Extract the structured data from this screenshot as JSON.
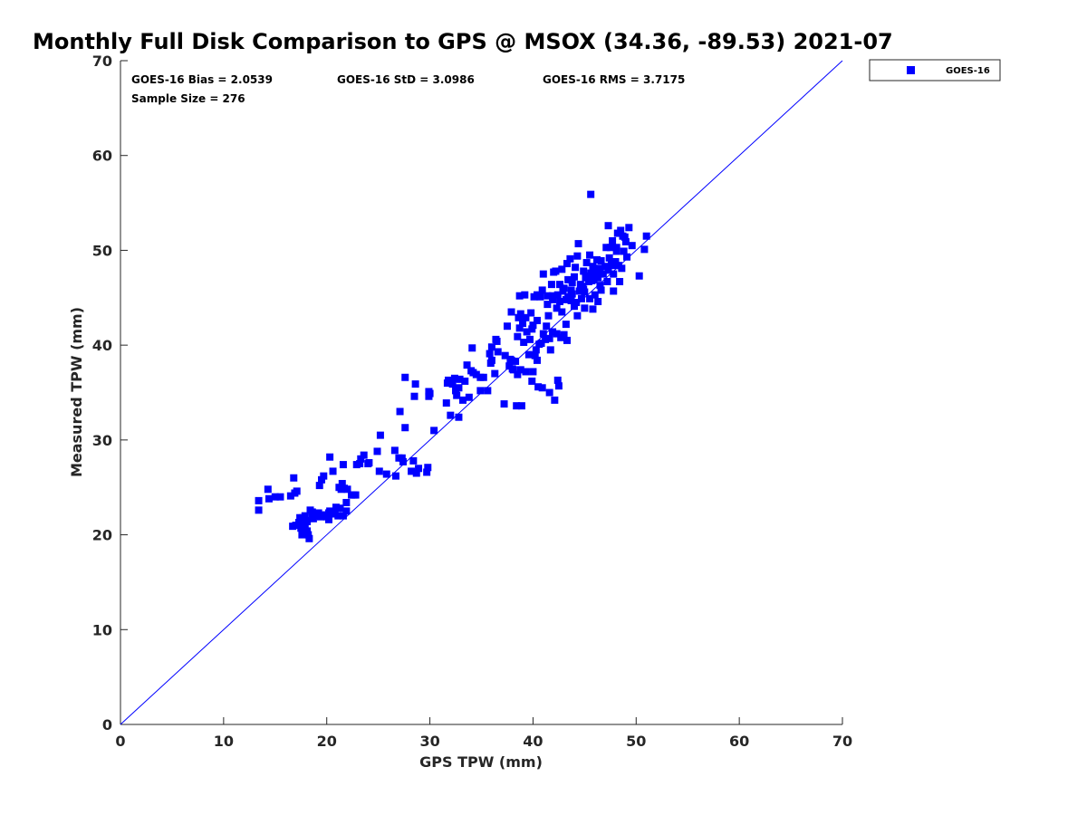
{
  "chart_data": {
    "type": "scatter",
    "title": "Monthly Full Disk Comparison to GPS @ MSOX (34.36, -89.53) 2021-07",
    "xlabel": "GPS TPW (mm)",
    "ylabel": "Measured TPW (mm)",
    "xlim": [
      0,
      70
    ],
    "ylim": [
      0,
      70
    ],
    "xticks": [
      0,
      10,
      20,
      30,
      40,
      50,
      60,
      70
    ],
    "yticks": [
      0,
      10,
      20,
      30,
      40,
      50,
      60,
      70
    ],
    "grid": false,
    "legend_position": "outside-top-right",
    "reference_line": {
      "name": "1:1",
      "x": [
        0,
        70
      ],
      "y": [
        0,
        70
      ],
      "color": "#0000ff"
    },
    "stats": {
      "bias": "GOES-16 Bias = 2.0539",
      "std": "GOES-16 StD = 3.0986",
      "rms": "GOES-16 RMS = 3.7175",
      "sample": "Sample Size = 276"
    },
    "series": [
      {
        "name": "GOES-16",
        "color": "#0000ff",
        "marker": "square",
        "points": [
          [
            13.4,
            23.6
          ],
          [
            13.4,
            22.6
          ],
          [
            14.3,
            24.8
          ],
          [
            14.4,
            23.8
          ],
          [
            15.0,
            24.0
          ],
          [
            15.5,
            24.0
          ],
          [
            16.5,
            24.1
          ],
          [
            16.8,
            26.0
          ],
          [
            16.9,
            24.4
          ],
          [
            17.1,
            24.6
          ],
          [
            16.7,
            20.9
          ],
          [
            17.0,
            21.0
          ],
          [
            17.3,
            21.3
          ],
          [
            17.5,
            20.7
          ],
          [
            17.7,
            21.8
          ],
          [
            17.9,
            22.0
          ],
          [
            18.0,
            21.5
          ],
          [
            18.1,
            20.4
          ],
          [
            18.2,
            20.0
          ],
          [
            18.3,
            19.6
          ],
          [
            17.6,
            20.0
          ],
          [
            17.9,
            21.0
          ],
          [
            18.4,
            22.6
          ],
          [
            18.6,
            22.2
          ],
          [
            18.9,
            22.0
          ],
          [
            19.2,
            22.3
          ],
          [
            19.5,
            22.0
          ],
          [
            19.8,
            22.1
          ],
          [
            20.0,
            21.9
          ],
          [
            20.2,
            21.6
          ],
          [
            20.3,
            22.5
          ],
          [
            20.6,
            22.4
          ],
          [
            20.8,
            22.2
          ],
          [
            21.1,
            22.0
          ],
          [
            21.3,
            22.8
          ],
          [
            21.6,
            22.0
          ],
          [
            21.9,
            23.4
          ],
          [
            22.0,
            24.8
          ],
          [
            22.4,
            24.2
          ],
          [
            22.8,
            24.2
          ],
          [
            19.3,
            25.2
          ],
          [
            19.5,
            25.8
          ],
          [
            19.7,
            26.2
          ],
          [
            20.3,
            28.2
          ],
          [
            20.6,
            26.7
          ],
          [
            21.2,
            25.0
          ],
          [
            21.4,
            24.8
          ],
          [
            21.5,
            25.4
          ],
          [
            21.6,
            27.4
          ],
          [
            23.2,
            27.5
          ],
          [
            23.3,
            28.0
          ],
          [
            23.6,
            28.4
          ],
          [
            24.1,
            27.6
          ],
          [
            24.9,
            28.8
          ],
          [
            25.2,
            30.5
          ],
          [
            25.8,
            26.4
          ],
          [
            26.6,
            28.9
          ],
          [
            26.7,
            26.2
          ],
          [
            27.0,
            28.1
          ],
          [
            27.1,
            33.0
          ],
          [
            27.4,
            27.7
          ],
          [
            27.6,
            31.3
          ],
          [
            27.6,
            36.6
          ],
          [
            28.2,
            26.7
          ],
          [
            28.4,
            27.8
          ],
          [
            28.5,
            34.6
          ],
          [
            28.6,
            35.9
          ],
          [
            28.7,
            26.5
          ],
          [
            28.9,
            27.0
          ],
          [
            29.7,
            26.6
          ],
          [
            29.8,
            27.1
          ],
          [
            29.9,
            34.6
          ],
          [
            29.9,
            35.1
          ],
          [
            30.4,
            31.0
          ],
          [
            31.6,
            33.9
          ],
          [
            31.8,
            36.3
          ],
          [
            32.0,
            32.6
          ],
          [
            32.2,
            35.9
          ],
          [
            32.4,
            36.5
          ],
          [
            32.5,
            35.2
          ],
          [
            32.8,
            32.4
          ],
          [
            32.9,
            36.4
          ],
          [
            33.2,
            34.2
          ],
          [
            33.6,
            37.9
          ],
          [
            33.8,
            34.5
          ],
          [
            34.1,
            39.7
          ],
          [
            34.2,
            37.1
          ],
          [
            34.5,
            36.9
          ],
          [
            34.9,
            35.2
          ],
          [
            34.9,
            36.6
          ],
          [
            35.2,
            36.6
          ],
          [
            35.6,
            35.2
          ],
          [
            35.8,
            39.1
          ],
          [
            36.0,
            38.4
          ],
          [
            36.0,
            39.8
          ],
          [
            36.3,
            37.0
          ],
          [
            36.4,
            40.6
          ],
          [
            36.6,
            39.3
          ],
          [
            37.2,
            33.8
          ],
          [
            37.5,
            42.0
          ],
          [
            37.7,
            37.8
          ],
          [
            37.8,
            38.5
          ],
          [
            37.9,
            43.5
          ],
          [
            38.1,
            37.4
          ],
          [
            38.3,
            38.3
          ],
          [
            38.4,
            33.6
          ],
          [
            38.5,
            36.9
          ],
          [
            38.7,
            41.8
          ],
          [
            38.7,
            45.2
          ],
          [
            38.8,
            37.4
          ],
          [
            38.8,
            43.3
          ],
          [
            38.9,
            33.6
          ],
          [
            39.0,
            42.3
          ],
          [
            39.1,
            40.3
          ],
          [
            39.2,
            45.3
          ],
          [
            39.3,
            37.2
          ],
          [
            39.3,
            42.9
          ],
          [
            39.6,
            39.0
          ],
          [
            39.7,
            40.6
          ],
          [
            39.9,
            36.2
          ],
          [
            40.0,
            37.2
          ],
          [
            40.0,
            42.1
          ],
          [
            40.1,
            45.1
          ],
          [
            40.2,
            38.9
          ],
          [
            40.3,
            39.5
          ],
          [
            40.4,
            38.4
          ],
          [
            40.4,
            42.6
          ],
          [
            40.5,
            35.6
          ],
          [
            40.7,
            45.1
          ],
          [
            40.8,
            40.2
          ],
          [
            40.9,
            35.5
          ],
          [
            40.9,
            45.8
          ],
          [
            41.0,
            47.5
          ],
          [
            41.2,
            40.6
          ],
          [
            41.3,
            42.0
          ],
          [
            41.4,
            45.2
          ],
          [
            41.5,
            43.1
          ],
          [
            41.6,
            35.0
          ],
          [
            41.6,
            40.7
          ],
          [
            41.7,
            39.5
          ],
          [
            41.8,
            46.4
          ],
          [
            41.9,
            41.4
          ],
          [
            41.9,
            44.8
          ],
          [
            42.0,
            47.7
          ],
          [
            42.1,
            34.2
          ],
          [
            42.3,
            41.2
          ],
          [
            42.4,
            45.3
          ],
          [
            42.4,
            36.3
          ],
          [
            42.5,
            35.7
          ],
          [
            42.6,
            46.4
          ],
          [
            42.6,
            44.6
          ],
          [
            42.7,
            40.8
          ],
          [
            42.8,
            48.0
          ],
          [
            42.8,
            43.5
          ],
          [
            43.0,
            41.1
          ],
          [
            43.0,
            46.0
          ],
          [
            43.2,
            44.8
          ],
          [
            43.2,
            42.2
          ],
          [
            43.3,
            40.5
          ],
          [
            43.3,
            48.6
          ],
          [
            43.4,
            45.1
          ],
          [
            43.6,
            49.1
          ],
          [
            43.7,
            44.7
          ],
          [
            43.8,
            46.6
          ],
          [
            43.8,
            45.4
          ],
          [
            44.0,
            47.2
          ],
          [
            44.1,
            48.2
          ],
          [
            44.2,
            44.5
          ],
          [
            44.3,
            49.4
          ],
          [
            44.3,
            43.1
          ],
          [
            44.4,
            50.7
          ],
          [
            44.6,
            46.4
          ],
          [
            44.7,
            44.9
          ],
          [
            44.8,
            46.2
          ],
          [
            44.9,
            47.8
          ],
          [
            45.0,
            45.6
          ],
          [
            45.0,
            43.9
          ],
          [
            45.2,
            48.7
          ],
          [
            45.3,
            47.3
          ],
          [
            45.4,
            46.7
          ],
          [
            45.5,
            44.9
          ],
          [
            45.5,
            49.5
          ],
          [
            45.6,
            47.6
          ],
          [
            45.6,
            55.9
          ],
          [
            45.8,
            48.3
          ],
          [
            45.8,
            43.8
          ],
          [
            45.9,
            46.9
          ],
          [
            46.0,
            47.8
          ],
          [
            46.0,
            45.3
          ],
          [
            46.1,
            47.3
          ],
          [
            46.2,
            49.0
          ],
          [
            46.3,
            44.6
          ],
          [
            46.4,
            48.1
          ],
          [
            46.5,
            47.7
          ],
          [
            46.5,
            46.3
          ],
          [
            46.6,
            45.8
          ],
          [
            46.8,
            47.5
          ],
          [
            47.0,
            48.3
          ],
          [
            47.1,
            50.3
          ],
          [
            47.2,
            46.7
          ],
          [
            47.3,
            52.6
          ],
          [
            47.3,
            47.9
          ],
          [
            47.4,
            49.2
          ],
          [
            47.5,
            50.3
          ],
          [
            47.6,
            48.6
          ],
          [
            47.7,
            51.0
          ],
          [
            47.8,
            47.5
          ],
          [
            47.8,
            45.7
          ],
          [
            48.0,
            48.8
          ],
          [
            48.1,
            49.9
          ],
          [
            48.1,
            50.3
          ],
          [
            48.2,
            51.8
          ],
          [
            48.3,
            48.4
          ],
          [
            48.4,
            46.7
          ],
          [
            48.5,
            52.1
          ],
          [
            48.6,
            48.1
          ],
          [
            48.7,
            51.5
          ],
          [
            48.8,
            49.9
          ],
          [
            48.9,
            51.4
          ],
          [
            49.0,
            50.9
          ],
          [
            49.1,
            49.3
          ],
          [
            49.3,
            52.4
          ],
          [
            49.6,
            50.5
          ],
          [
            50.3,
            47.3
          ],
          [
            50.8,
            50.1
          ],
          [
            51.0,
            51.5
          ],
          [
            48.0,
            48.4
          ],
          [
            46.3,
            47.1
          ],
          [
            44.9,
            45.9
          ],
          [
            43.7,
            45.8
          ],
          [
            42.9,
            45.7
          ],
          [
            41.9,
            45.2
          ],
          [
            40.4,
            45.3
          ],
          [
            39.8,
            43.4
          ],
          [
            38.6,
            42.9
          ],
          [
            37.9,
            38.4
          ],
          [
            36.5,
            40.4
          ],
          [
            35.9,
            38.1
          ],
          [
            34.0,
            37.3
          ],
          [
            32.8,
            35.5
          ],
          [
            31.7,
            36.0
          ],
          [
            30.0,
            34.9
          ],
          [
            22.6,
            24.2
          ],
          [
            21.9,
            22.5
          ],
          [
            20.2,
            22.3
          ],
          [
            19.4,
            21.9
          ],
          [
            18.6,
            22.4
          ],
          [
            18.1,
            21.4
          ],
          [
            17.4,
            21.8
          ],
          [
            46.6,
            48.9
          ],
          [
            47.9,
            48.7
          ],
          [
            45.1,
            47.1
          ],
          [
            44.5,
            45.7
          ],
          [
            43.4,
            46.9
          ],
          [
            42.2,
            47.8
          ],
          [
            41.0,
            41.2
          ],
          [
            40.6,
            40.1
          ],
          [
            39.4,
            41.4
          ],
          [
            38.5,
            40.9
          ],
          [
            37.3,
            38.9
          ],
          [
            33.4,
            36.2
          ],
          [
            32.6,
            34.7
          ],
          [
            27.3,
            28.1
          ],
          [
            25.1,
            26.7
          ],
          [
            24.0,
            27.5
          ],
          [
            22.9,
            27.4
          ],
          [
            21.7,
            24.9
          ],
          [
            20.9,
            22.9
          ],
          [
            19.0,
            22.0
          ],
          [
            18.7,
            21.7
          ],
          [
            44.0,
            44.1
          ],
          [
            45.7,
            46.8
          ],
          [
            42.3,
            43.9
          ],
          [
            41.4,
            44.3
          ],
          [
            39.9,
            41.7
          ],
          [
            38.0,
            37.5
          ]
        ]
      }
    ]
  }
}
